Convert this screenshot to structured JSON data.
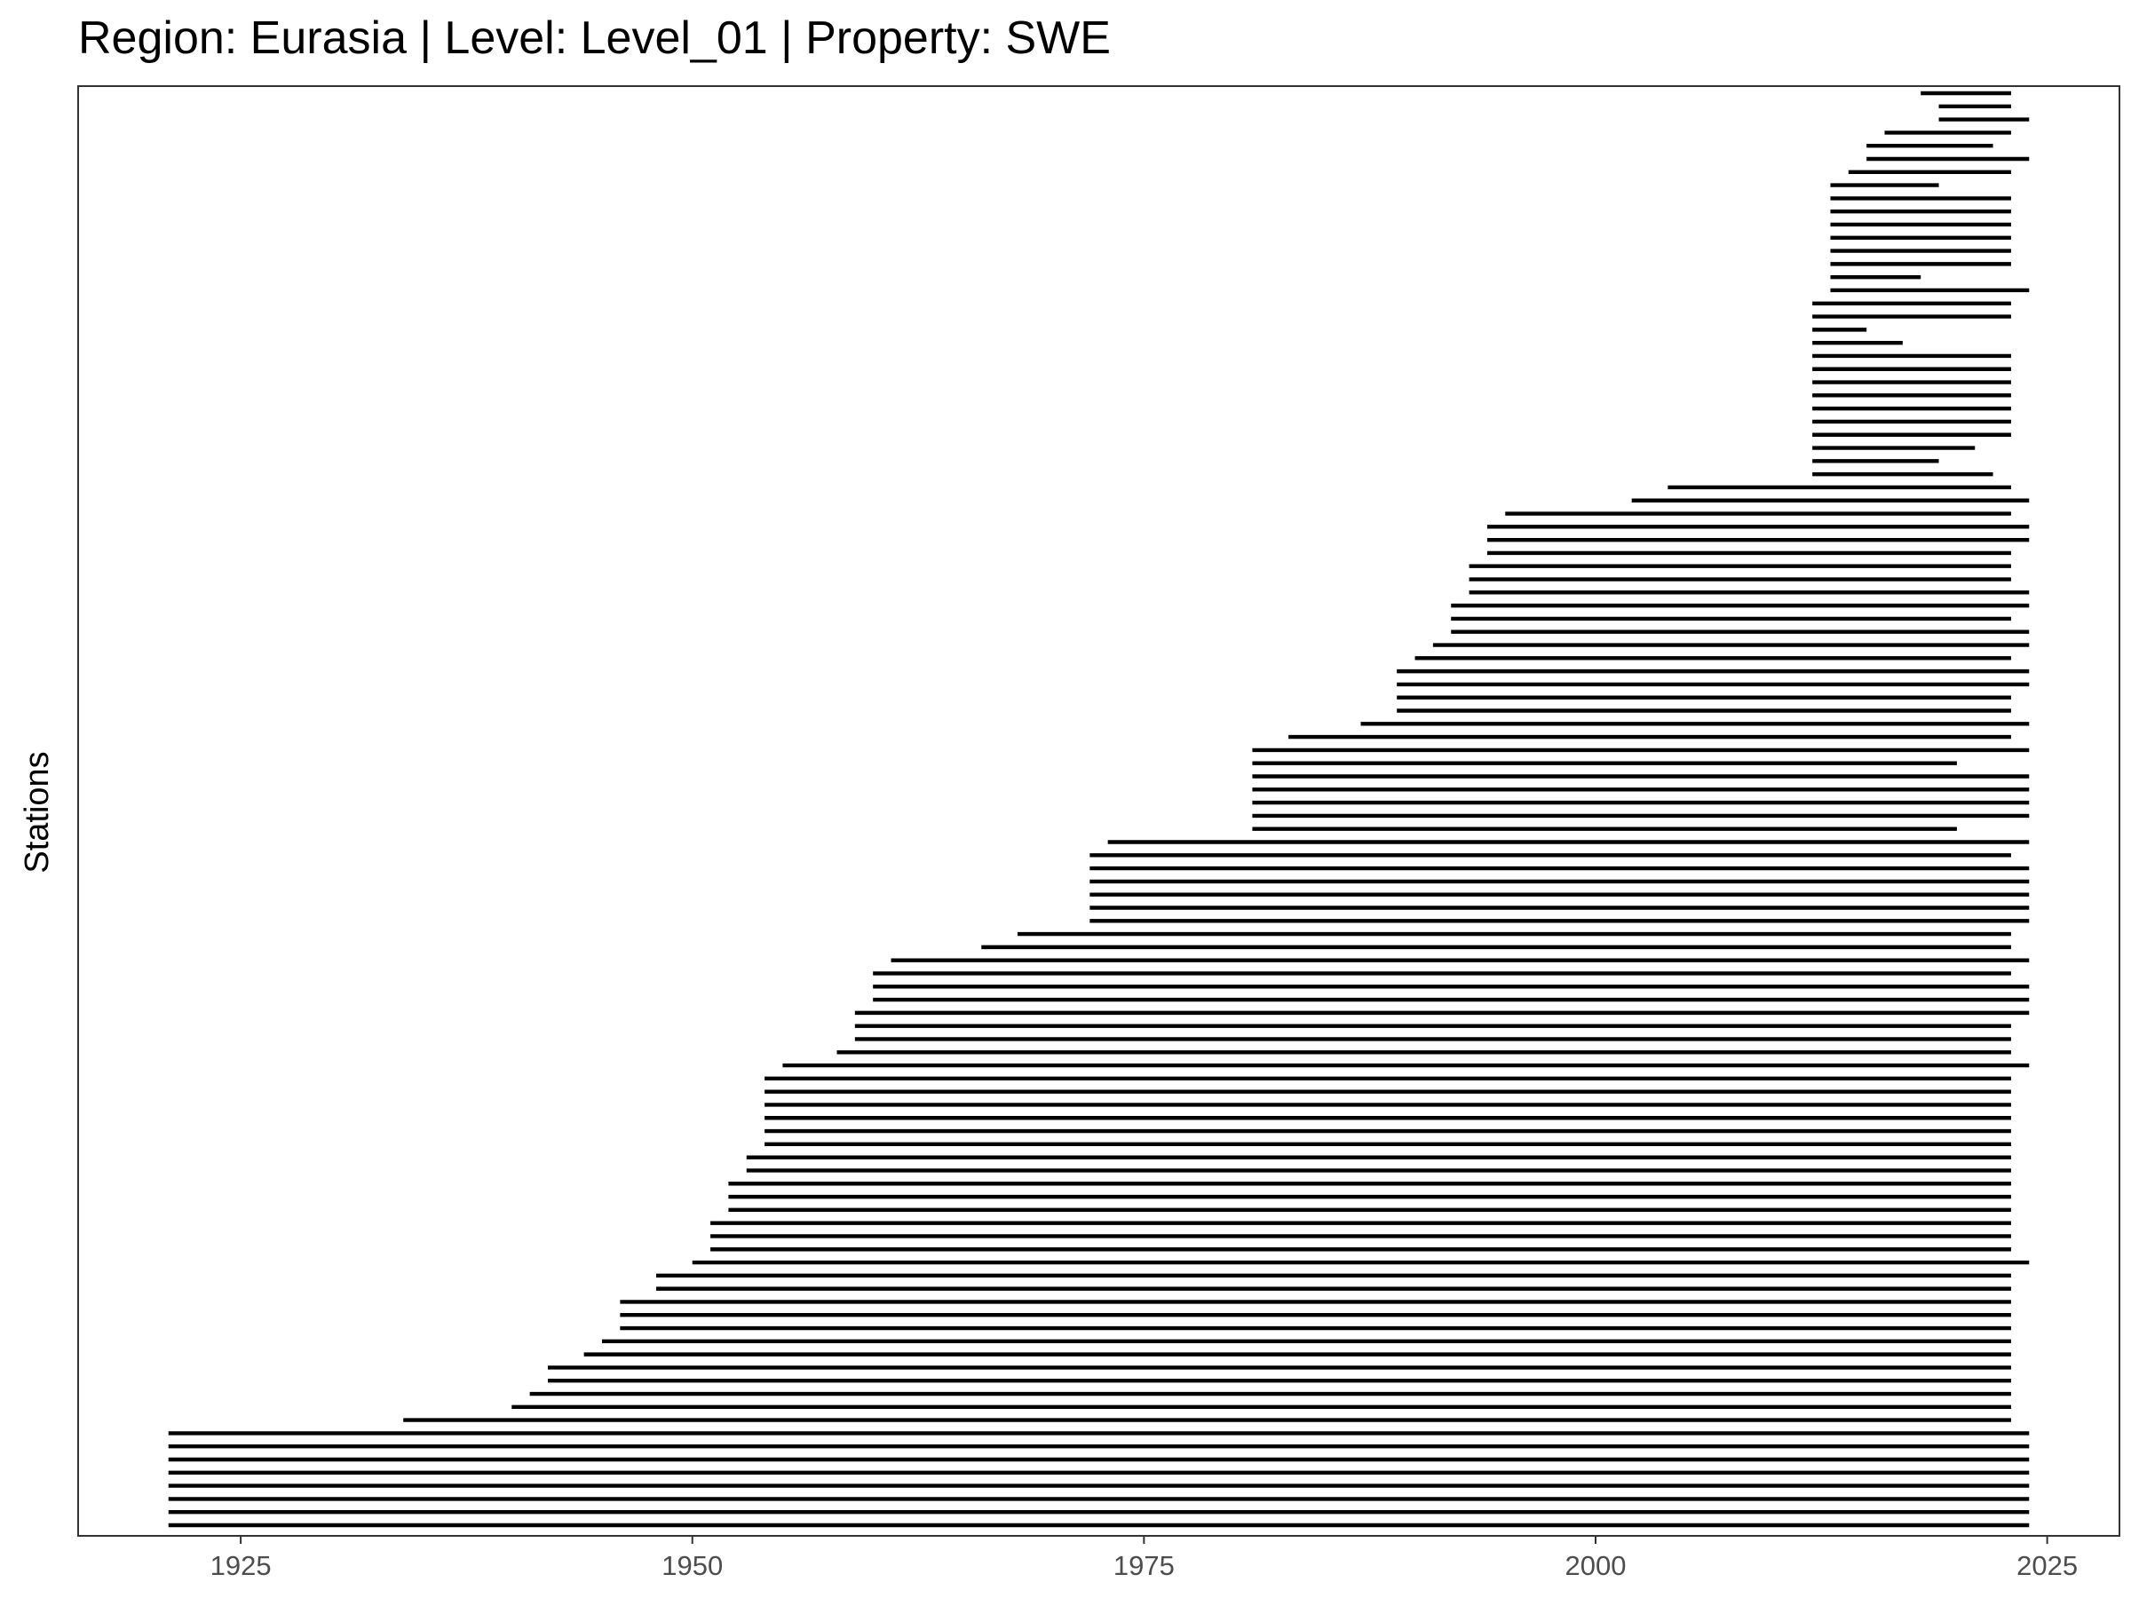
{
  "chart_data": {
    "type": "segment",
    "title": "Region: Eurasia | Level: Level_01 | Property: SWE",
    "xlabel": "",
    "ylabel": "Stations",
    "xlim": [
      1916,
      2029
    ],
    "x_ticks": [
      "1925",
      "1950",
      "1975",
      "2000",
      "2025"
    ],
    "x_tick_values": [
      1925,
      1950,
      1975,
      2000,
      2025
    ],
    "y_tick_labels": "none",
    "grid": false,
    "legend": "none",
    "line_color": "#000000",
    "segments_top_to_bottom": [
      [
        2018.0,
        2023.0
      ],
      [
        2019.0,
        2023.0
      ],
      [
        2019.0,
        2024.0
      ],
      [
        2016.0,
        2023.0
      ],
      [
        2015.0,
        2022.0
      ],
      [
        2015.0,
        2024.0
      ],
      [
        2014.0,
        2023.0
      ],
      [
        2013.0,
        2019.0
      ],
      [
        2013.0,
        2023.0
      ],
      [
        2013.0,
        2023.0
      ],
      [
        2013.0,
        2023.0
      ],
      [
        2013.0,
        2023.0
      ],
      [
        2013.0,
        2023.0
      ],
      [
        2013.0,
        2023.0
      ],
      [
        2013.0,
        2018.0
      ],
      [
        2013.0,
        2024.0
      ],
      [
        2012.0,
        2023.0
      ],
      [
        2012.0,
        2023.0
      ],
      [
        2012.0,
        2015.0
      ],
      [
        2012.0,
        2017.0
      ],
      [
        2012.0,
        2023.0
      ],
      [
        2012.0,
        2023.0
      ],
      [
        2012.0,
        2023.0
      ],
      [
        2012.0,
        2023.0
      ],
      [
        2012.0,
        2023.0
      ],
      [
        2012.0,
        2023.0
      ],
      [
        2012.0,
        2023.0
      ],
      [
        2012.0,
        2021.0
      ],
      [
        2012.0,
        2019.0
      ],
      [
        2012.0,
        2022.0
      ],
      [
        2004.0,
        2023.0
      ],
      [
        2002.0,
        2024.0
      ],
      [
        1995.0,
        2023.0
      ],
      [
        1994.0,
        2024.0
      ],
      [
        1994.0,
        2024.0
      ],
      [
        1994.0,
        2023.0
      ],
      [
        1993.0,
        2023.0
      ],
      [
        1993.0,
        2023.0
      ],
      [
        1993.0,
        2024.0
      ],
      [
        1992.0,
        2024.0
      ],
      [
        1992.0,
        2023.0
      ],
      [
        1992.0,
        2024.0
      ],
      [
        1991.0,
        2024.0
      ],
      [
        1990.0,
        2023.0
      ],
      [
        1989.0,
        2024.0
      ],
      [
        1989.0,
        2024.0
      ],
      [
        1989.0,
        2023.0
      ],
      [
        1989.0,
        2023.0
      ],
      [
        1987.0,
        2024.0
      ],
      [
        1983.0,
        2023.0
      ],
      [
        1981.0,
        2024.0
      ],
      [
        1981.0,
        2020.0
      ],
      [
        1981.0,
        2024.0
      ],
      [
        1981.0,
        2024.0
      ],
      [
        1981.0,
        2024.0
      ],
      [
        1981.0,
        2024.0
      ],
      [
        1981.0,
        2020.0
      ],
      [
        1973.0,
        2024.0
      ],
      [
        1972.0,
        2023.0
      ],
      [
        1972.0,
        2024.0
      ],
      [
        1972.0,
        2024.0
      ],
      [
        1972.0,
        2024.0
      ],
      [
        1972.0,
        2024.0
      ],
      [
        1972.0,
        2024.0
      ],
      [
        1968.0,
        2023.0
      ],
      [
        1966.0,
        2023.0
      ],
      [
        1961.0,
        2024.0
      ],
      [
        1960.0,
        2023.0
      ],
      [
        1960.0,
        2024.0
      ],
      [
        1960.0,
        2024.0
      ],
      [
        1959.0,
        2024.0
      ],
      [
        1959.0,
        2023.0
      ],
      [
        1959.0,
        2023.0
      ],
      [
        1958.0,
        2023.0
      ],
      [
        1955.0,
        2024.0
      ],
      [
        1954.0,
        2023.0
      ],
      [
        1954.0,
        2023.0
      ],
      [
        1954.0,
        2023.0
      ],
      [
        1954.0,
        2023.0
      ],
      [
        1954.0,
        2023.0
      ],
      [
        1954.0,
        2023.0
      ],
      [
        1953.0,
        2023.0
      ],
      [
        1953.0,
        2023.0
      ],
      [
        1952.0,
        2023.0
      ],
      [
        1952.0,
        2023.0
      ],
      [
        1952.0,
        2023.0
      ],
      [
        1951.0,
        2023.0
      ],
      [
        1951.0,
        2023.0
      ],
      [
        1951.0,
        2023.0
      ],
      [
        1950.0,
        2024.0
      ],
      [
        1948.0,
        2023.0
      ],
      [
        1948.0,
        2023.0
      ],
      [
        1946.0,
        2023.0
      ],
      [
        1946.0,
        2023.0
      ],
      [
        1946.0,
        2023.0
      ],
      [
        1945.0,
        2023.0
      ],
      [
        1944.0,
        2023.0
      ],
      [
        1942.0,
        2023.0
      ],
      [
        1942.0,
        2023.0
      ],
      [
        1941.0,
        2023.0
      ],
      [
        1940.0,
        2023.0
      ],
      [
        1934.0,
        2023.0
      ],
      [
        1921.0,
        2024.0
      ],
      [
        1921.0,
        2024.0
      ],
      [
        1921.0,
        2024.0
      ],
      [
        1921.0,
        2024.0
      ],
      [
        1921.0,
        2024.0
      ],
      [
        1921.0,
        2024.0
      ],
      [
        1921.0,
        2024.0
      ],
      [
        1921.0,
        2024.0
      ]
    ]
  }
}
